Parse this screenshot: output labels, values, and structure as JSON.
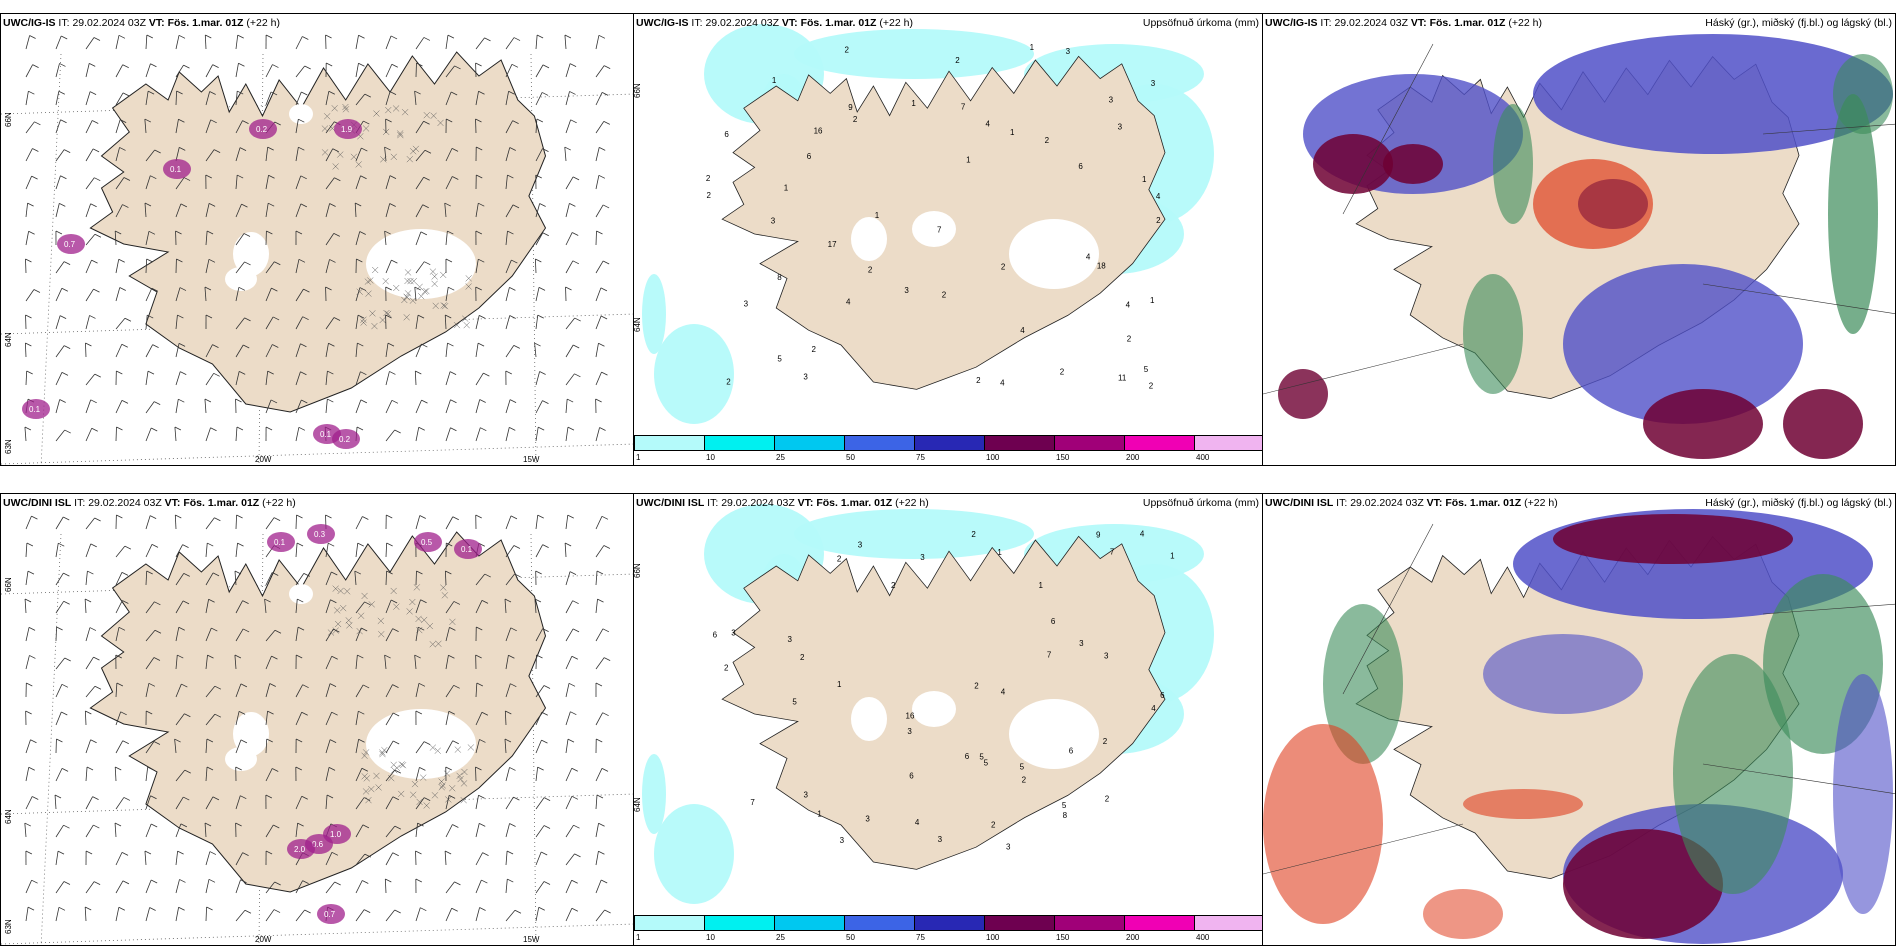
{
  "panels": [
    {
      "model": "UWC/IG-IS",
      "it_label": "IT:",
      "it": "29.02.2024 03Z",
      "vt_label": "VT:",
      "vt": "Fös. 1.mar. 01Z",
      "lead": "(+22 h)",
      "title_right": ""
    },
    {
      "model": "UWC/IG-IS",
      "it_label": "IT:",
      "it": "29.02.2024 03Z",
      "vt_label": "VT:",
      "vt": "Fös. 1.mar. 01Z",
      "lead": "(+22 h)",
      "title_right": "Uppsöfnuð úrkoma (mm)"
    },
    {
      "model": "UWC/IG-IS",
      "it_label": "IT:",
      "it": "29.02.2024 03Z",
      "vt_label": "VT:",
      "vt": "Fös. 1.mar. 01Z",
      "lead": "(+22 h)",
      "title_right": "Háský (gr.), miðský (fj.bl.) og lágský (bl.)"
    },
    {
      "model": "UWC/DINI ISL",
      "it_label": "IT:",
      "it": "29.02.2024 03Z",
      "vt_label": "VT:",
      "vt": "Fös. 1.mar. 01Z",
      "lead": "(+22 h)",
      "title_right": ""
    },
    {
      "model": "UWC/DINI ISL",
      "it_label": "IT:",
      "it": "29.02.2024 03Z",
      "vt_label": "VT:",
      "vt": "Fös. 1.mar. 01Z",
      "lead": "(+22 h)",
      "title_right": "Uppsöfnuð úrkoma (mm)"
    },
    {
      "model": "UWC/DINI ISL",
      "it_label": "IT:",
      "it": "29.02.2024 03Z",
      "vt_label": "VT:",
      "vt": "Fös. 1.mar. 01Z",
      "lead": "(+22 h)",
      "title_right": "Háský (gr.), miðský (fj.bl.) og lágský (bl.)"
    }
  ],
  "axis_labels": {
    "lat_66": "66N",
    "lat_64": "64N",
    "lat_63": "63N",
    "lon_20": "20W",
    "lon_15": "15W"
  },
  "colorbar": {
    "ticks": [
      "1",
      "10",
      "25",
      "50",
      "75",
      "100",
      "150",
      "200",
      "400"
    ],
    "colors": [
      "#b4fafa",
      "#00f0f0",
      "#00c8f0",
      "#3c64e6",
      "#2828b4",
      "#6e0050",
      "#a00078",
      "#f000b4",
      "#f0b4f0"
    ]
  },
  "precip_top": [
    "2",
    "1",
    "1",
    "4",
    "1",
    "1",
    "2",
    "1",
    "4",
    "3",
    "6",
    "18",
    "6",
    "4",
    "3",
    "7",
    "17",
    "2",
    "2",
    "1",
    "5",
    "7",
    "5",
    "8",
    "1",
    "3",
    "2",
    "4",
    "2",
    "3",
    "3",
    "2",
    "3",
    "2",
    "1",
    "2",
    "2",
    "2",
    "3",
    "4",
    "4",
    "6",
    "3",
    "2",
    "2",
    "1",
    "4",
    "2",
    "9",
    "2",
    "11",
    "16",
    "2"
  ],
  "precip_bottom": [
    "3",
    "2",
    "3",
    "3",
    "3",
    "2",
    "4",
    "1",
    "3",
    "1",
    "7",
    "6",
    "16",
    "5",
    "7",
    "9",
    "2",
    "7",
    "6",
    "3",
    "5",
    "5",
    "3",
    "8",
    "4",
    "6",
    "5",
    "2",
    "3",
    "2",
    "2",
    "4",
    "1",
    "3",
    "3",
    "4",
    "2",
    "3",
    "6",
    "5",
    "3",
    "2",
    "1",
    "2",
    "1",
    "2",
    "6",
    "6"
  ],
  "wind_labels_top": [
    "0.1",
    "0.7",
    "0.1",
    "0.1",
    "0.2",
    "0.2",
    "1.9"
  ],
  "wind_labels_bottom": [
    "0.3",
    "0.1",
    "0.5",
    "0.1",
    "0.6",
    "1.0",
    "0.7",
    "2.0"
  ],
  "colors": {
    "land": "#ecdcc8",
    "sea": "#ffffff",
    "cyan_light": "#b4fafa",
    "high_cloud": "#3c8c5a",
    "mid_cloud": "#5050c8",
    "low_cloud": "#6e0032",
    "convective": "#e04020"
  }
}
